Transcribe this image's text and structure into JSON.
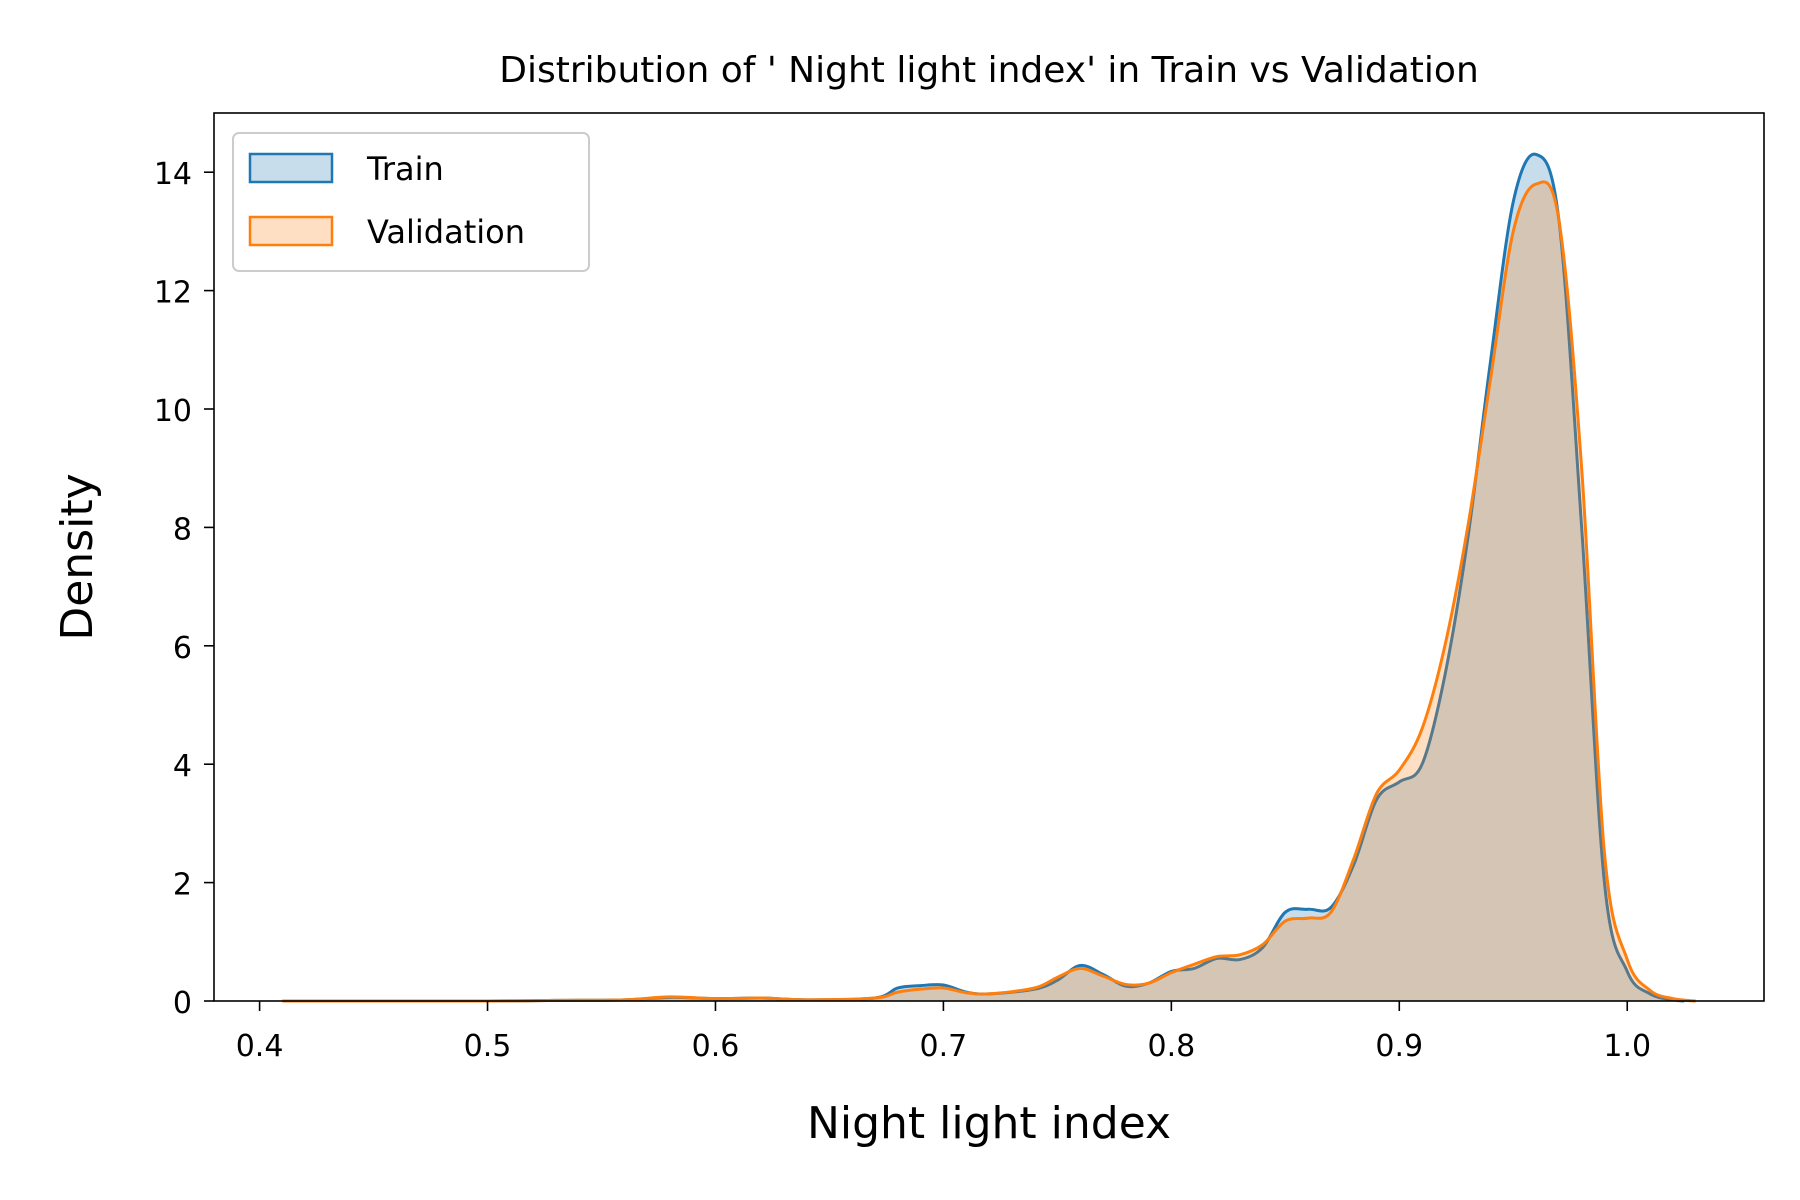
{
  "chart_data": {
    "type": "area",
    "title": "Distribution of ' Night light index' in Train vs Validation",
    "xlabel": "Night light index",
    "ylabel": "Density",
    "xlim": [
      0.38,
      1.06
    ],
    "ylim": [
      0,
      15
    ],
    "xticks": [
      0.4,
      0.5,
      0.6,
      0.7,
      0.8,
      0.9,
      1.0
    ],
    "xtick_labels": [
      "0.4",
      "0.5",
      "0.6",
      "0.7",
      "0.8",
      "0.9",
      "1.0"
    ],
    "yticks": [
      0,
      2,
      4,
      6,
      8,
      10,
      12,
      14
    ],
    "ytick_labels": [
      "0",
      "2",
      "4",
      "6",
      "8",
      "10",
      "12",
      "14"
    ],
    "grid": false,
    "legend_position": "top-left",
    "series": [
      {
        "name": "Train",
        "color": "#1f77b4",
        "points": [
          [
            0.41,
            0.0
          ],
          [
            0.5,
            0.0
          ],
          [
            0.53,
            0.01
          ],
          [
            0.56,
            0.02
          ],
          [
            0.58,
            0.06
          ],
          [
            0.6,
            0.04
          ],
          [
            0.62,
            0.05
          ],
          [
            0.64,
            0.02
          ],
          [
            0.67,
            0.05
          ],
          [
            0.68,
            0.22
          ],
          [
            0.69,
            0.26
          ],
          [
            0.7,
            0.27
          ],
          [
            0.71,
            0.15
          ],
          [
            0.72,
            0.12
          ],
          [
            0.74,
            0.2
          ],
          [
            0.75,
            0.35
          ],
          [
            0.76,
            0.6
          ],
          [
            0.77,
            0.45
          ],
          [
            0.78,
            0.25
          ],
          [
            0.79,
            0.3
          ],
          [
            0.8,
            0.5
          ],
          [
            0.81,
            0.55
          ],
          [
            0.82,
            0.72
          ],
          [
            0.83,
            0.7
          ],
          [
            0.84,
            0.9
          ],
          [
            0.85,
            1.5
          ],
          [
            0.86,
            1.55
          ],
          [
            0.87,
            1.58
          ],
          [
            0.88,
            2.3
          ],
          [
            0.89,
            3.4
          ],
          [
            0.9,
            3.7
          ],
          [
            0.91,
            4.0
          ],
          [
            0.92,
            5.5
          ],
          [
            0.93,
            7.8
          ],
          [
            0.94,
            10.8
          ],
          [
            0.95,
            13.5
          ],
          [
            0.96,
            14.3
          ],
          [
            0.97,
            13.2
          ],
          [
            0.98,
            8.0
          ],
          [
            0.99,
            2.0
          ],
          [
            1.0,
            0.5
          ],
          [
            1.01,
            0.12
          ],
          [
            1.02,
            0.02
          ],
          [
            1.025,
            0.0
          ]
        ]
      },
      {
        "name": "Validation",
        "color": "#ff7f0e",
        "points": [
          [
            0.41,
            0.0
          ],
          [
            0.5,
            0.0
          ],
          [
            0.53,
            0.01
          ],
          [
            0.56,
            0.02
          ],
          [
            0.58,
            0.07
          ],
          [
            0.6,
            0.04
          ],
          [
            0.62,
            0.05
          ],
          [
            0.64,
            0.02
          ],
          [
            0.67,
            0.05
          ],
          [
            0.68,
            0.15
          ],
          [
            0.69,
            0.2
          ],
          [
            0.7,
            0.22
          ],
          [
            0.71,
            0.14
          ],
          [
            0.72,
            0.12
          ],
          [
            0.74,
            0.22
          ],
          [
            0.75,
            0.4
          ],
          [
            0.76,
            0.55
          ],
          [
            0.77,
            0.42
          ],
          [
            0.78,
            0.28
          ],
          [
            0.79,
            0.3
          ],
          [
            0.8,
            0.48
          ],
          [
            0.81,
            0.62
          ],
          [
            0.82,
            0.75
          ],
          [
            0.83,
            0.78
          ],
          [
            0.84,
            0.95
          ],
          [
            0.85,
            1.35
          ],
          [
            0.86,
            1.4
          ],
          [
            0.87,
            1.5
          ],
          [
            0.88,
            2.4
          ],
          [
            0.89,
            3.5
          ],
          [
            0.9,
            3.9
          ],
          [
            0.91,
            4.6
          ],
          [
            0.92,
            6.0
          ],
          [
            0.93,
            8.0
          ],
          [
            0.94,
            10.5
          ],
          [
            0.95,
            13.0
          ],
          [
            0.96,
            13.8
          ],
          [
            0.97,
            13.2
          ],
          [
            0.98,
            9.0
          ],
          [
            0.99,
            2.5
          ],
          [
            1.0,
            0.7
          ],
          [
            1.01,
            0.18
          ],
          [
            1.02,
            0.04
          ],
          [
            1.03,
            0.0
          ]
        ]
      }
    ]
  }
}
